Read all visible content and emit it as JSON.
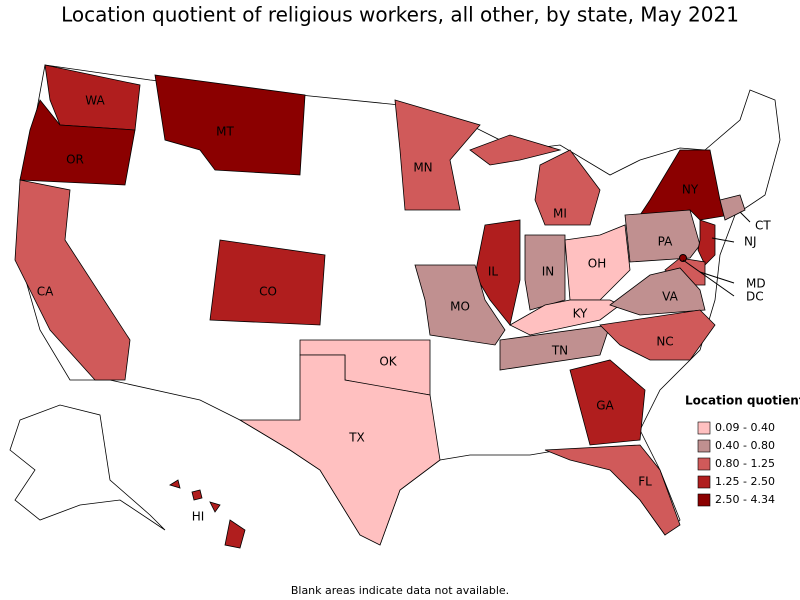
{
  "title": "Location quotient of religious workers, all other, by state, May 2021",
  "legend": {
    "title": "Location quotient",
    "items": [
      {
        "label": "0.09 - 0.40",
        "color": "#ffc0c0"
      },
      {
        "label": "0.40 - 0.80",
        "color": "#c09090"
      },
      {
        "label": "0.80 - 1.25",
        "color": "#d05a5a"
      },
      {
        "label": "1.25 - 2.50",
        "color": "#b01e1e"
      },
      {
        "label": "2.50 - 4.34",
        "color": "#8b0000"
      }
    ]
  },
  "states": [
    {
      "label": "WA",
      "color": "#b01e1e"
    },
    {
      "label": "OR",
      "color": "#8b0000"
    },
    {
      "label": "MT",
      "color": "#8b0000"
    },
    {
      "label": "CA",
      "color": "#d05a5a"
    },
    {
      "label": "CO",
      "color": "#b01e1e"
    },
    {
      "label": "MN",
      "color": "#d05a5a"
    },
    {
      "label": "MI",
      "color": "#d05a5a"
    },
    {
      "label": "IL",
      "color": "#b01e1e"
    },
    {
      "label": "IN",
      "color": "#c09090"
    },
    {
      "label": "OH",
      "color": "#ffc0c0"
    },
    {
      "label": "KY",
      "color": "#ffc0c0"
    },
    {
      "label": "TN",
      "color": "#c09090"
    },
    {
      "label": "MO",
      "color": "#c09090"
    },
    {
      "label": "OK",
      "color": "#ffc0c0"
    },
    {
      "label": "TX",
      "color": "#ffc0c0"
    },
    {
      "label": "NY",
      "color": "#8b0000"
    },
    {
      "label": "PA",
      "color": "#c09090"
    },
    {
      "label": "CT",
      "color": "#c09090"
    },
    {
      "label": "NJ",
      "color": "#b01e1e"
    },
    {
      "label": "MD",
      "color": "#d05a5a"
    },
    {
      "label": "DC",
      "color": "#8b0000"
    },
    {
      "label": "VA",
      "color": "#c09090"
    },
    {
      "label": "NC",
      "color": "#d05a5a"
    },
    {
      "label": "GA",
      "color": "#b01e1e"
    },
    {
      "label": "FL",
      "color": "#d05a5a"
    },
    {
      "label": "HI",
      "color": "#b01e1e"
    }
  ],
  "note": "Blank areas indicate data not available."
}
